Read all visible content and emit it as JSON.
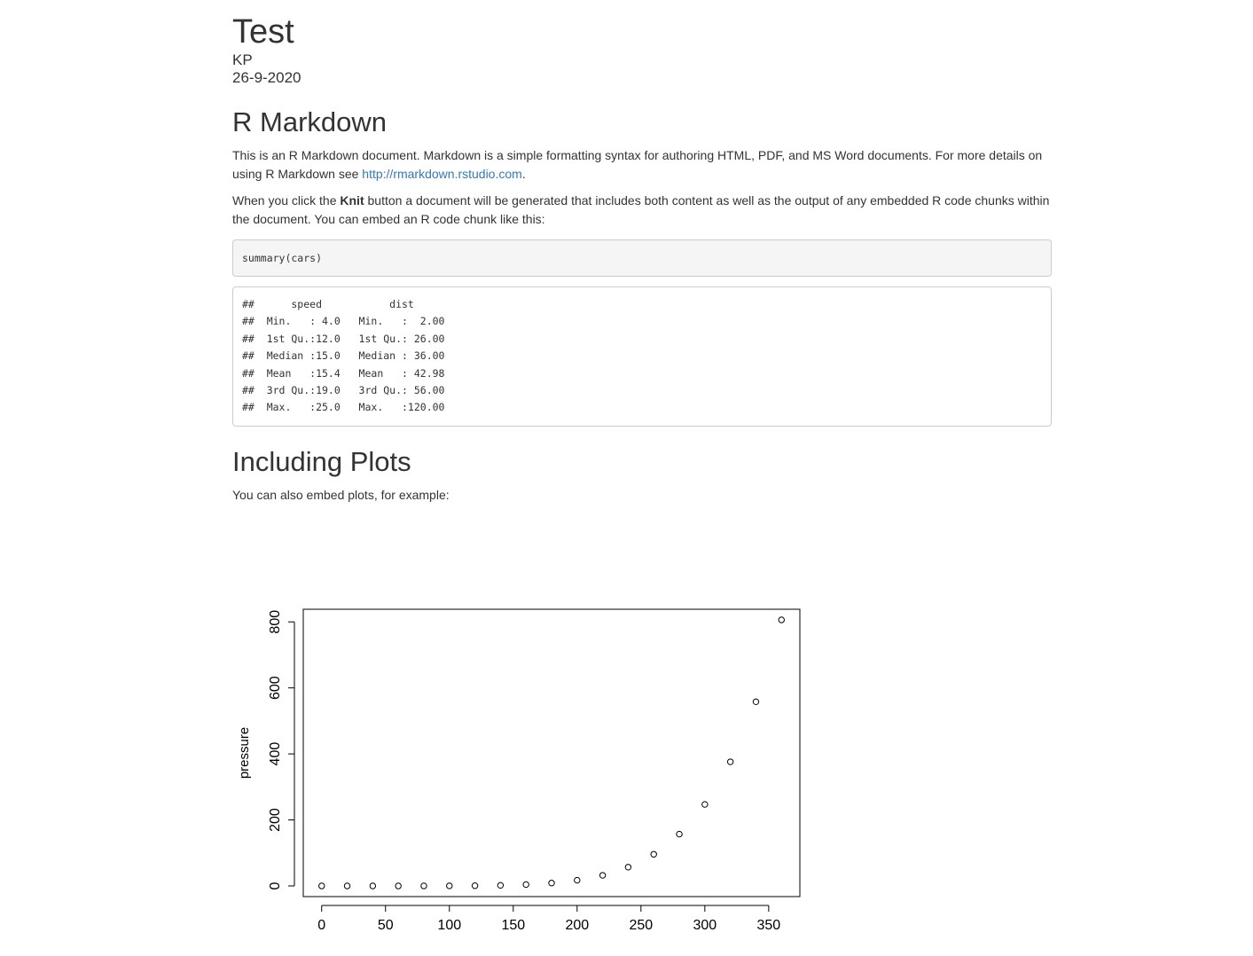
{
  "doc": {
    "title": "Test",
    "author": "KP",
    "date": "26-9-2020"
  },
  "section1": {
    "heading": "R Markdown",
    "para1_text": "This is an R Markdown document. Markdown is a simple formatting syntax for authoring HTML, PDF, and MS Word documents. For more details on using R Markdown see ",
    "para1_link": "http://rmarkdown.rstudio.com",
    "para1_end": ".",
    "para2_pre": "When you click the ",
    "para2_bold": "Knit",
    "para2_post": " button a document will be generated that includes both content as well as the output of any embedded R code chunks within the document. You can embed an R code chunk like this:",
    "code": "summary(cars)",
    "output_lines": [
      "##      speed           dist       ",
      "##  Min.   : 4.0   Min.   :  2.00  ",
      "##  1st Qu.:12.0   1st Qu.: 26.00  ",
      "##  Median :15.0   Median : 36.00  ",
      "##  Mean   :15.4   Mean   : 42.98  ",
      "##  3rd Qu.:19.0   3rd Qu.: 56.00  ",
      "##  Max.   :25.0   Max.   :120.00  "
    ]
  },
  "section2": {
    "heading": "Including Plots",
    "para": "You can also embed plots, for example:"
  },
  "chart_data": {
    "type": "scatter",
    "title": "",
    "xlabel": "",
    "ylabel": "pressure",
    "xlim": [
      0,
      360
    ],
    "ylim": [
      0,
      806
    ],
    "x_ticks": [
      0,
      50,
      100,
      150,
      200,
      250,
      300,
      350
    ],
    "y_ticks": [
      0,
      200,
      400,
      600,
      800
    ],
    "grid": false,
    "x": [
      0,
      20,
      40,
      60,
      80,
      100,
      120,
      140,
      160,
      180,
      200,
      220,
      240,
      260,
      280,
      300,
      320,
      340,
      360
    ],
    "y": [
      0.0002,
      0.0012,
      0.006,
      0.03,
      0.09,
      0.27,
      0.75,
      1.85,
      4.2,
      8.8,
      17.3,
      32.1,
      57,
      96,
      157,
      247,
      376,
      558,
      806
    ],
    "marker": "open-circle",
    "color": "#000000"
  }
}
